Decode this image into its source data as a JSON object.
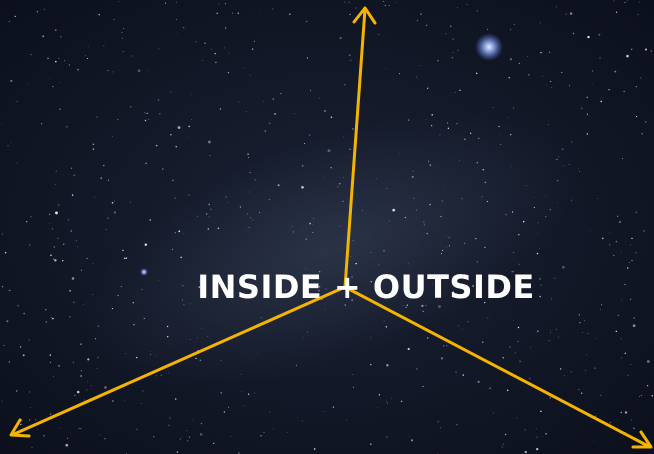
{
  "title": "INSIDE + OUTSIDE"
}
